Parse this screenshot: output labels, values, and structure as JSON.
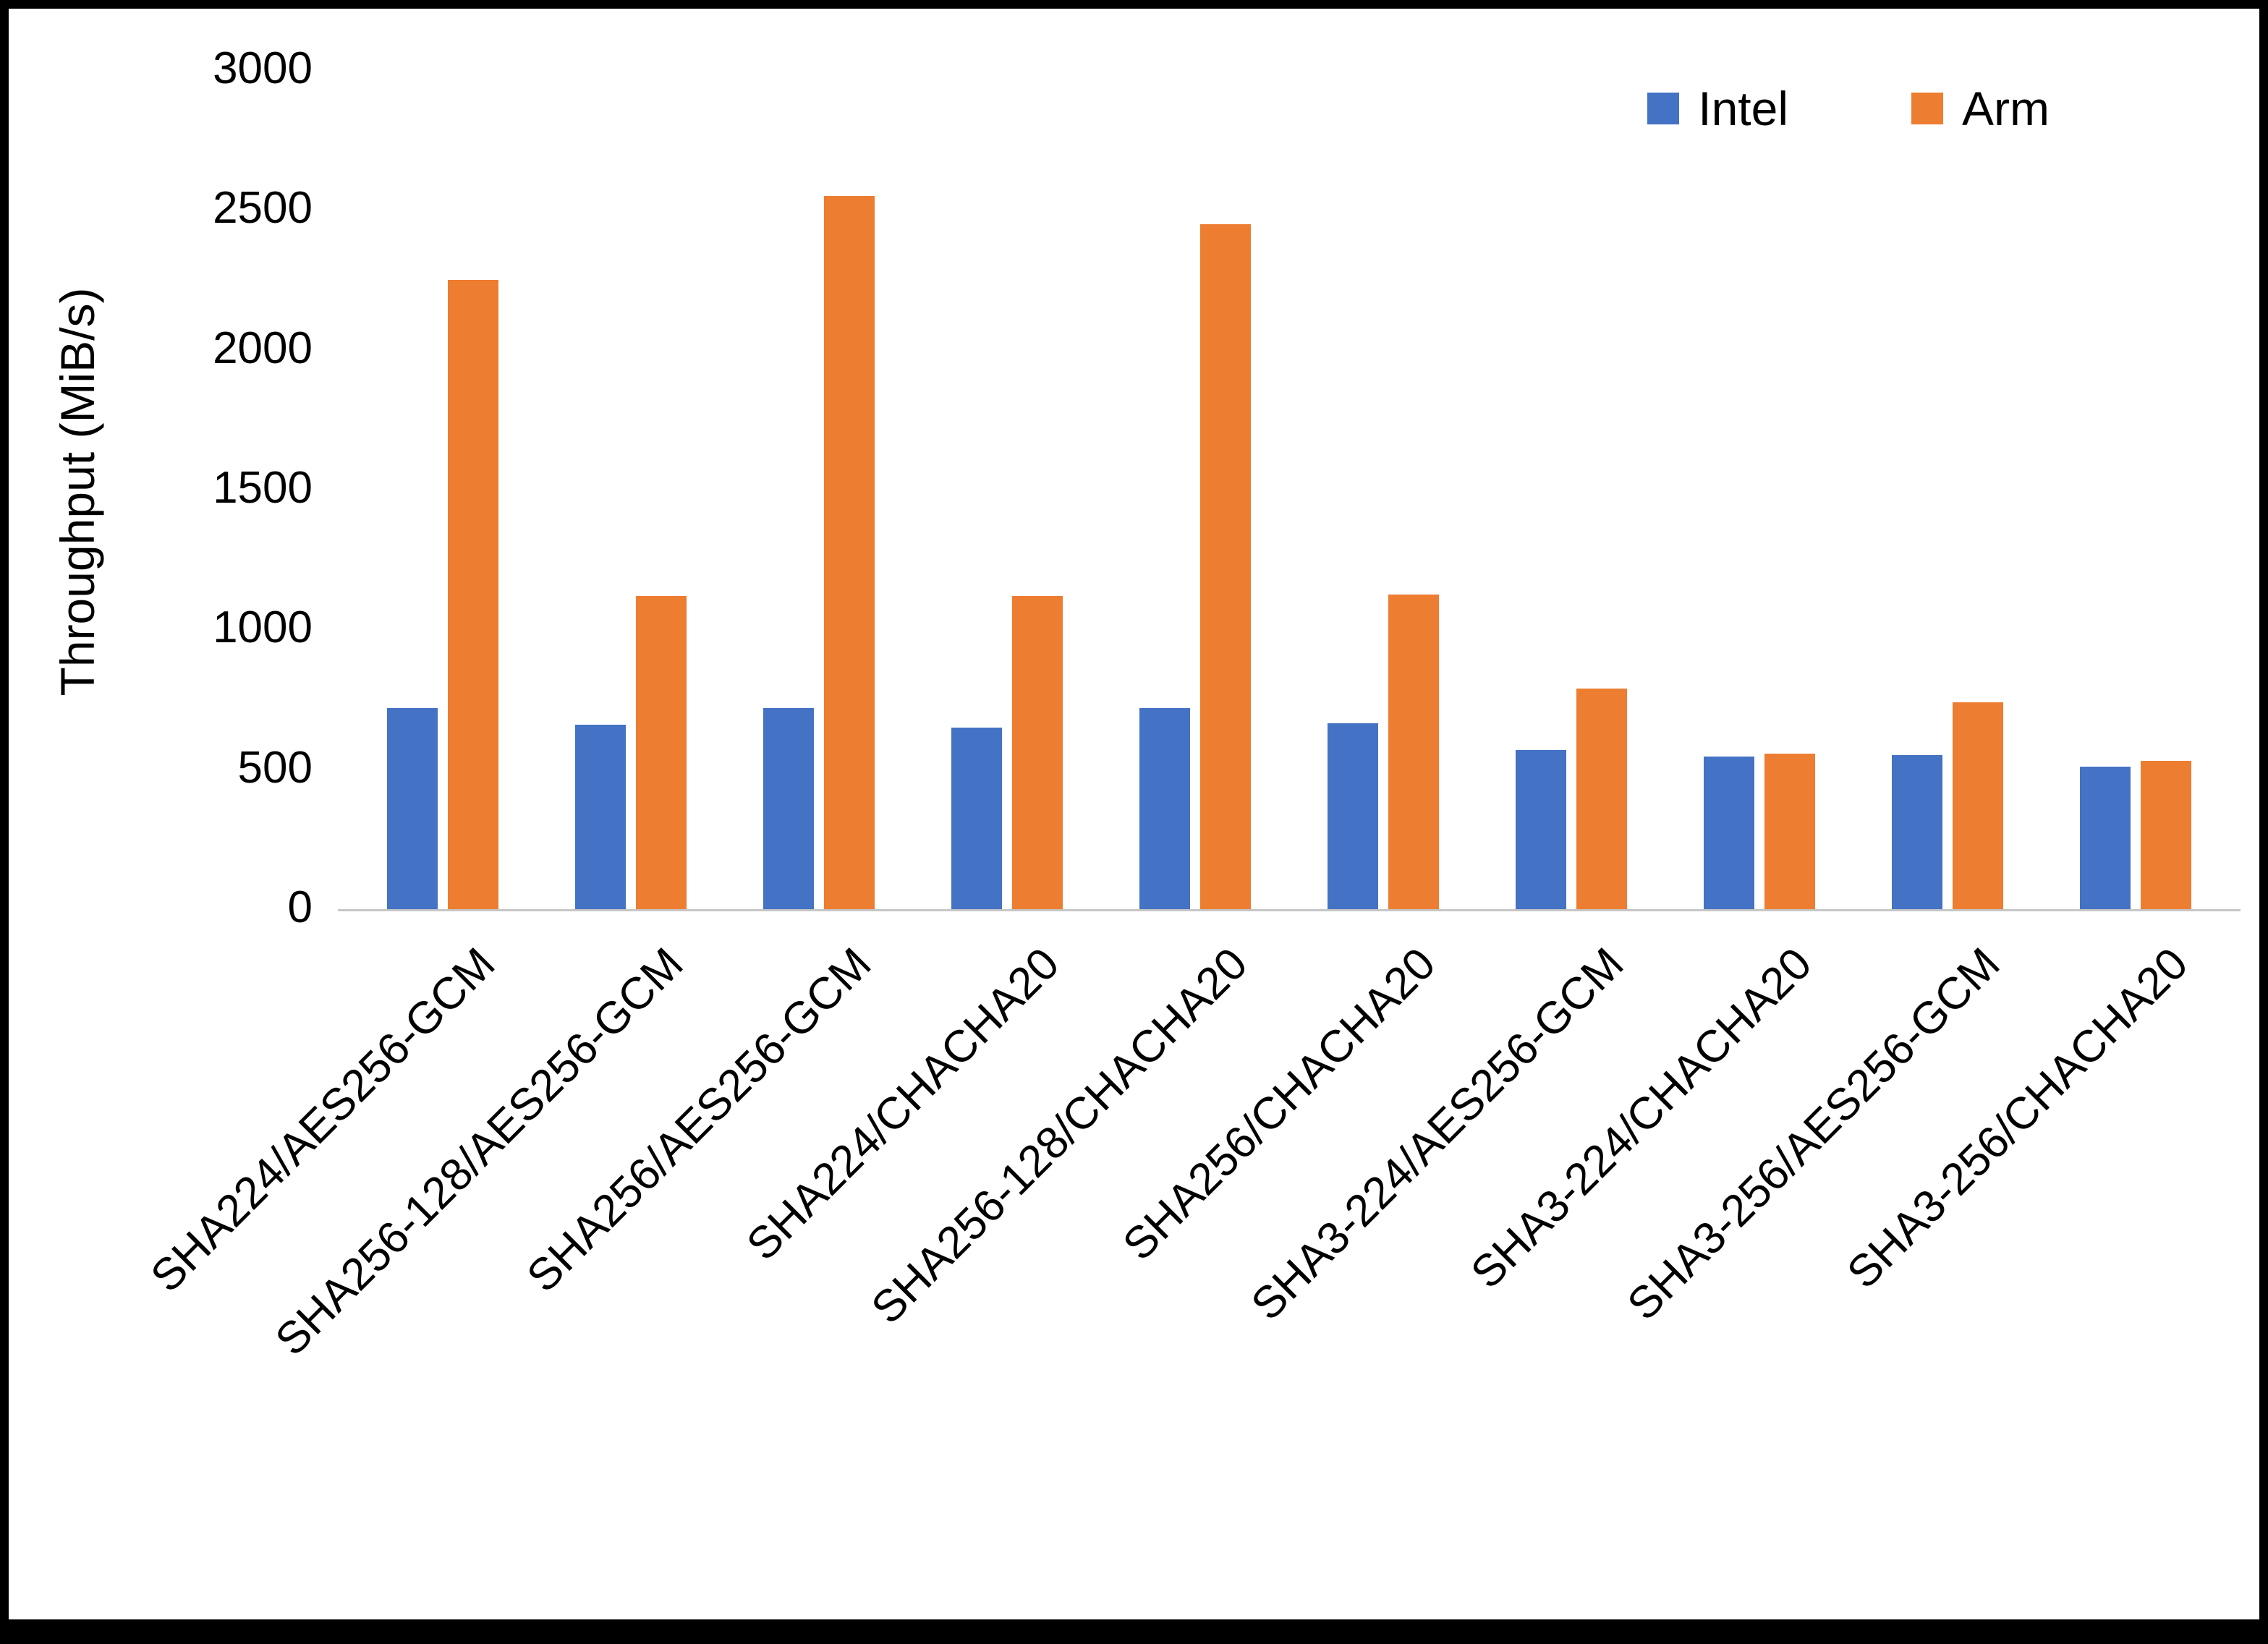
{
  "chart_data": {
    "type": "bar",
    "title": "",
    "xlabel": "",
    "ylabel": "Throughput (MiB/s)",
    "ylim": [
      0,
      3000
    ],
    "yticks": [
      0,
      500,
      1000,
      1500,
      2000,
      2500,
      3000
    ],
    "grid": false,
    "legend_position": "top-right",
    "categories": [
      "SHA224/AES256-GCM",
      "SHA256-128/AES256-GCM",
      "SHA256/AES256-GCM",
      "SHA224/CHACHA20",
      "SHA256-128/CHACHA20",
      "SHA256/CHACHA20",
      "SHA3-224/AES256-GCM",
      "SHA3-224/CHACHA20",
      "SHA3-256/AES256-GCM",
      "SHA3-256/CHACHA20"
    ],
    "series": [
      {
        "name": "Intel",
        "color": "#4472C4",
        "values": [
          720,
          660,
          720,
          650,
          720,
          665,
          570,
          545,
          550,
          510
        ]
      },
      {
        "name": "Arm",
        "color": "#ED7D31",
        "values": [
          2250,
          1120,
          2550,
          1120,
          2450,
          1125,
          790,
          555,
          740,
          530
        ]
      }
    ]
  }
}
